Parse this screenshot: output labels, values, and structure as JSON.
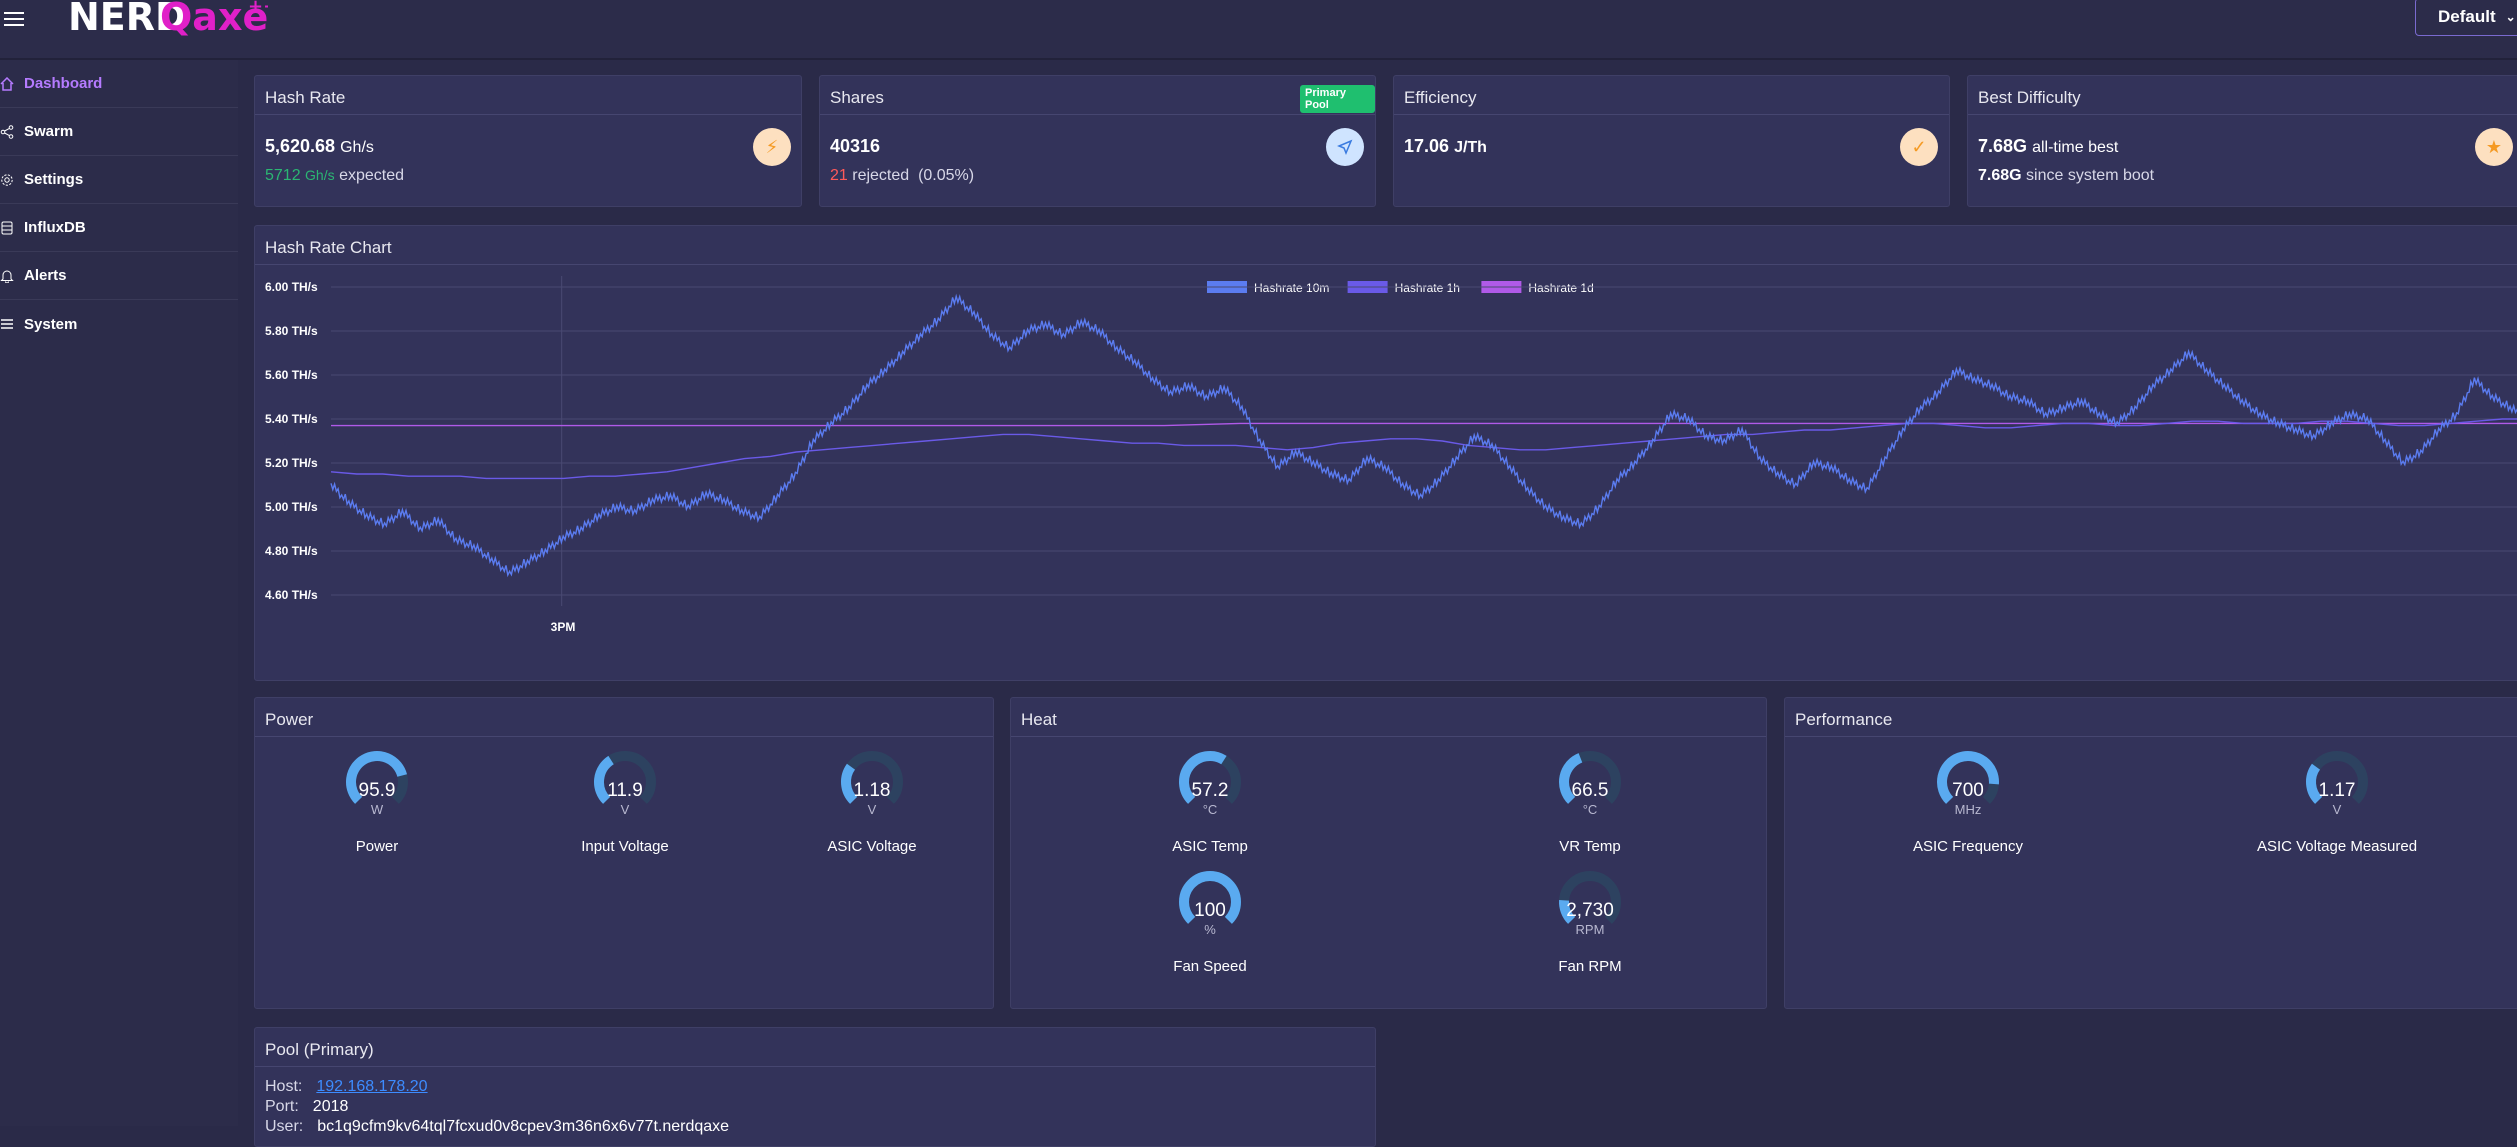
{
  "header": {
    "logo_part1": "NERD",
    "logo_part2": "Qaxe",
    "logo_sup": "++",
    "profile_label": "Default"
  },
  "sidebar": {
    "items": [
      {
        "label": "Dashboard",
        "icon": "home-icon"
      },
      {
        "label": "Swarm",
        "icon": "share-icon"
      },
      {
        "label": "Settings",
        "icon": "gear-icon"
      },
      {
        "label": "InfluxDB",
        "icon": "database-icon"
      },
      {
        "label": "Alerts",
        "icon": "bell-icon"
      },
      {
        "label": "System",
        "icon": "list-icon"
      }
    ]
  },
  "stats": {
    "hashrate": {
      "title": "Hash Rate",
      "value": "5,620.68",
      "unit": "Gh/s",
      "expected_value": "5712",
      "expected_unit": "Gh/s",
      "expected_label": "expected",
      "icon": "bolt-icon"
    },
    "shares": {
      "title": "Shares",
      "badge": "Primary Pool",
      "value": "40316",
      "rejected_count": "21",
      "rejected_label": "rejected",
      "rejected_pct": "(0.05%)",
      "icon": "send-icon"
    },
    "efficiency": {
      "title": "Efficiency",
      "value": "17.06",
      "unit": "J/Th",
      "icon": "check-icon"
    },
    "best_difficulty": {
      "title": "Best Difficulty",
      "alltime_value": "7.68G",
      "alltime_label": "all-time best",
      "boot_value": "7.68G",
      "boot_label": "since system boot",
      "icon": "star-icon"
    }
  },
  "chart_card": {
    "title": "Hash Rate Chart"
  },
  "chart_data": {
    "type": "line",
    "title": "Hash Rate Chart",
    "xlabel": "",
    "ylabel": "",
    "ylim": [
      4.55,
      6.05
    ],
    "yticks": [
      "6.00 TH/s",
      "5.80 TH/s",
      "5.60 TH/s",
      "5.40 TH/s",
      "5.20 TH/s",
      "5.00 TH/s",
      "4.80 TH/s",
      "4.60 TH/s"
    ],
    "ytick_values": [
      6.0,
      5.8,
      5.6,
      5.4,
      5.2,
      5.0,
      4.8,
      4.6
    ],
    "xticks": [
      "3PM"
    ],
    "xtick_positions": [
      0.105
    ],
    "legend": "top-center",
    "grid": true,
    "series": [
      {
        "name": "Hashrate 10m",
        "color": "#5b7cf0",
        "values": [
          5.1,
          5.02,
          4.96,
          4.92,
          4.98,
          4.9,
          4.94,
          4.85,
          4.82,
          4.76,
          4.7,
          4.75,
          4.8,
          4.86,
          4.9,
          4.96,
          5.0,
          4.98,
          5.03,
          5.05,
          5.0,
          5.06,
          5.03,
          4.98,
          4.95,
          5.05,
          5.15,
          5.3,
          5.38,
          5.45,
          5.55,
          5.62,
          5.7,
          5.78,
          5.85,
          5.95,
          5.88,
          5.78,
          5.72,
          5.8,
          5.83,
          5.78,
          5.84,
          5.8,
          5.72,
          5.66,
          5.58,
          5.52,
          5.55,
          5.5,
          5.54,
          5.45,
          5.3,
          5.18,
          5.25,
          5.2,
          5.15,
          5.12,
          5.22,
          5.18,
          5.1,
          5.05,
          5.12,
          5.22,
          5.32,
          5.28,
          5.18,
          5.08,
          5.0,
          4.95,
          4.92,
          5.0,
          5.12,
          5.2,
          5.3,
          5.42,
          5.4,
          5.32,
          5.3,
          5.35,
          5.22,
          5.15,
          5.1,
          5.2,
          5.18,
          5.12,
          5.08,
          5.22,
          5.35,
          5.45,
          5.52,
          5.62,
          5.58,
          5.55,
          5.5,
          5.48,
          5.42,
          5.45,
          5.48,
          5.42,
          5.38,
          5.45,
          5.55,
          5.62,
          5.7,
          5.62,
          5.55,
          5.48,
          5.42,
          5.38,
          5.35,
          5.32,
          5.38,
          5.42,
          5.4,
          5.3,
          5.2,
          5.25,
          5.35,
          5.42,
          5.58,
          5.5,
          5.45,
          5.4
        ]
      },
      {
        "name": "Hashrate 1h",
        "color": "#6a5ae8",
        "values": [
          5.16,
          5.15,
          5.15,
          5.14,
          5.14,
          5.14,
          5.13,
          5.13,
          5.13,
          5.13,
          5.14,
          5.14,
          5.15,
          5.16,
          5.18,
          5.2,
          5.22,
          5.23,
          5.25,
          5.26,
          5.27,
          5.28,
          5.29,
          5.3,
          5.31,
          5.32,
          5.33,
          5.33,
          5.32,
          5.31,
          5.3,
          5.29,
          5.29,
          5.28,
          5.28,
          5.28,
          5.27,
          5.26,
          5.27,
          5.29,
          5.3,
          5.31,
          5.31,
          5.3,
          5.28,
          5.27,
          5.26,
          5.26,
          5.27,
          5.28,
          5.29,
          5.3,
          5.31,
          5.32,
          5.33,
          5.33,
          5.34,
          5.35,
          5.35,
          5.36,
          5.37,
          5.38,
          5.38,
          5.37,
          5.36,
          5.36,
          5.37,
          5.38,
          5.38,
          5.37,
          5.37,
          5.38,
          5.39,
          5.39,
          5.38,
          5.38,
          5.38,
          5.39,
          5.39,
          5.38,
          5.37,
          5.37,
          5.38,
          5.39,
          5.4,
          5.4
        ]
      },
      {
        "name": "Hashrate 1d",
        "color": "#b05ae8",
        "values": [
          5.37,
          5.37,
          5.37,
          5.37,
          5.37,
          5.37,
          5.37,
          5.37,
          5.37,
          5.37,
          5.37,
          5.37,
          5.38,
          5.38,
          5.38,
          5.38,
          5.38,
          5.38,
          5.38,
          5.38,
          5.38,
          5.38,
          5.38,
          5.38,
          5.38,
          5.38,
          5.38,
          5.38,
          5.38,
          5.38
        ]
      }
    ]
  },
  "power": {
    "title": "Power",
    "gauges": [
      {
        "value": "95.9",
        "unit": "W",
        "label": "Power",
        "fraction": 0.78
      },
      {
        "value": "11.9",
        "unit": "V",
        "label": "Input Voltage",
        "fraction": 0.38
      },
      {
        "value": "1.18",
        "unit": "V",
        "label": "ASIC Voltage",
        "fraction": 0.3
      }
    ]
  },
  "heat": {
    "title": "Heat",
    "gauges": [
      {
        "value": "57.2",
        "unit": "°C",
        "label": "ASIC Temp",
        "fraction": 0.62
      },
      {
        "value": "66.5",
        "unit": "°C",
        "label": "VR Temp",
        "fraction": 0.42
      },
      {
        "value": "100",
        "unit": "%",
        "label": "Fan Speed",
        "fraction": 1.0
      },
      {
        "value": "2,730",
        "unit": "RPM",
        "label": "Fan RPM",
        "fraction": 0.18
      }
    ]
  },
  "performance": {
    "title": "Performance",
    "gauges": [
      {
        "value": "700",
        "unit": "MHz",
        "label": "ASIC Frequency",
        "fraction": 0.85
      },
      {
        "value": "1.17",
        "unit": "V",
        "label": "ASIC Voltage Measured",
        "fraction": 0.3
      }
    ]
  },
  "pool": {
    "title": "Pool (Primary)",
    "host_label": "Host:",
    "host_value": "192.168.178.20",
    "port_label": "Port:",
    "port_value": "2018",
    "user_label": "User:",
    "user_value": "bc1q9cfm9kv64tql7fcxud0v8cpev3m36n6x6v77t.nerdqaxe"
  },
  "colors": {
    "accent": "#b57bff",
    "gauge_fill": "#5aaaf0",
    "gauge_track": "#2d4260",
    "rejected": "#ff5a5a",
    "expected": "#2bb673"
  }
}
